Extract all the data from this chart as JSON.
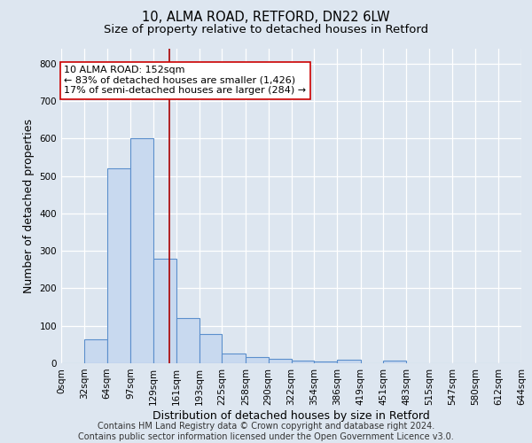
{
  "title1": "10, ALMA ROAD, RETFORD, DN22 6LW",
  "title2": "Size of property relative to detached houses in Retford",
  "xlabel": "Distribution of detached houses by size in Retford",
  "ylabel": "Number of detached properties",
  "footnote": "Contains HM Land Registry data © Crown copyright and database right 2024.\nContains public sector information licensed under the Open Government Licence v3.0.",
  "bin_labels": [
    "0sqm",
    "32sqm",
    "64sqm",
    "97sqm",
    "129sqm",
    "161sqm",
    "193sqm",
    "225sqm",
    "258sqm",
    "290sqm",
    "322sqm",
    "354sqm",
    "386sqm",
    "419sqm",
    "451sqm",
    "483sqm",
    "515sqm",
    "547sqm",
    "580sqm",
    "612sqm",
    "644sqm"
  ],
  "bin_edges": [
    0,
    32,
    64,
    97,
    129,
    161,
    193,
    225,
    258,
    290,
    322,
    354,
    386,
    419,
    451,
    483,
    515,
    547,
    580,
    612,
    644
  ],
  "bar_heights": [
    0,
    65,
    520,
    600,
    280,
    120,
    78,
    27,
    17,
    12,
    8,
    5,
    10,
    0,
    8,
    0,
    0,
    0,
    0,
    0
  ],
  "bar_color": "#c8d9ef",
  "bar_edge_color": "#5b8fcc",
  "property_size": 152,
  "vline_color": "#aa0000",
  "annotation_line1": "10 ALMA ROAD: 152sqm",
  "annotation_line2": "← 83% of detached houses are smaller (1,426)",
  "annotation_line3": "17% of semi-detached houses are larger (284) →",
  "annotation_box_color": "white",
  "annotation_box_edge_color": "#cc0000",
  "ylim": [
    0,
    840
  ],
  "yticks": [
    0,
    100,
    200,
    300,
    400,
    500,
    600,
    700,
    800
  ],
  "bg_color": "#dde6f0",
  "plot_bg_color": "#dde6f0",
  "grid_color": "white",
  "title1_fontsize": 10.5,
  "title2_fontsize": 9.5,
  "axis_label_fontsize": 9,
  "tick_fontsize": 7.5,
  "annot_fontsize": 8,
  "footnote_fontsize": 7
}
